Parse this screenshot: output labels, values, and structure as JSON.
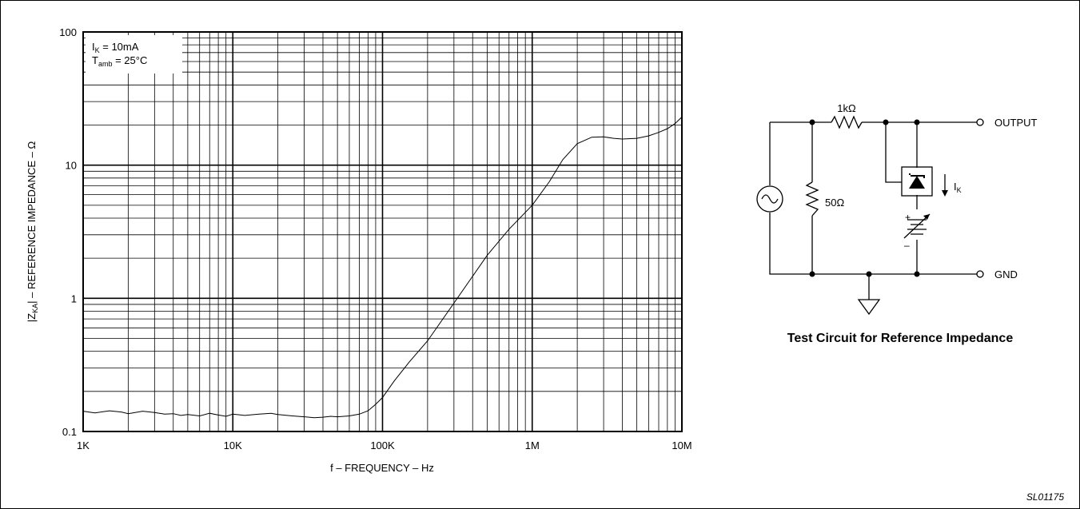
{
  "chart_data": {
    "type": "line",
    "xlabel": "f – FREQUENCY – Hz",
    "ylabel": "|Z",
    "ylabel_sub": "KA",
    "ylabel_rest": "| – REFERENCE IMPEDANCE – Ω",
    "x_scale": "log",
    "y_scale": "log",
    "xlim": [
      1000,
      10000000
    ],
    "ylim": [
      0.1,
      100
    ],
    "x_ticks": [
      {
        "value": 1000,
        "label": "1K"
      },
      {
        "value": 10000,
        "label": "10K"
      },
      {
        "value": 100000,
        "label": "100K"
      },
      {
        "value": 1000000,
        "label": "1M"
      },
      {
        "value": 10000000,
        "label": "10M"
      }
    ],
    "y_ticks": [
      {
        "value": 0.1,
        "label": "0.1"
      },
      {
        "value": 1,
        "label": "1"
      },
      {
        "value": 10,
        "label": "10"
      },
      {
        "value": 100,
        "label": "100"
      }
    ],
    "grid": true,
    "annotation": {
      "line1_main": "I",
      "line1_sub": "K",
      "line1_rest": " = 10mA",
      "line2_main": "T",
      "line2_sub": "amb",
      "line2_rest": " = 25°C"
    },
    "series": [
      {
        "x": [
          1000,
          1200,
          1500,
          1800,
          2000,
          2500,
          3000,
          3500,
          4000,
          4500,
          5000,
          6000,
          7000,
          8000,
          9000,
          10000,
          12000,
          15000,
          18000,
          20000,
          25000,
          30000,
          35000,
          40000,
          45000,
          50000,
          60000,
          70000,
          80000,
          90000,
          100000,
          120000,
          150000,
          200000,
          300000,
          500000,
          700000,
          1000000,
          1300000,
          1600000,
          2000000,
          2500000,
          3000000,
          3500000,
          4000000,
          5000000,
          6000000,
          7000000,
          8000000,
          9000000,
          10000000
        ],
        "y": [
          0.142,
          0.138,
          0.143,
          0.14,
          0.136,
          0.142,
          0.139,
          0.135,
          0.136,
          0.132,
          0.134,
          0.131,
          0.137,
          0.133,
          0.13,
          0.135,
          0.132,
          0.135,
          0.137,
          0.134,
          0.131,
          0.129,
          0.127,
          0.128,
          0.13,
          0.129,
          0.131,
          0.135,
          0.143,
          0.16,
          0.18,
          0.24,
          0.33,
          0.48,
          0.92,
          2.1,
          3.3,
          5.0,
          7.5,
          11,
          14.5,
          16.2,
          16.3,
          15.9,
          15.7,
          15.9,
          16.6,
          17.6,
          18.8,
          20.5,
          23
        ]
      }
    ]
  },
  "circuit": {
    "title": "Test Circuit for Reference Impedance",
    "resistor_top": "1kΩ",
    "resistor_shunt": "50Ω",
    "output_label": "OUTPUT",
    "gnd_label": "GND",
    "current_main": "I",
    "current_sub": "K",
    "battery_plus": "+",
    "battery_minus": "–"
  },
  "footer": {
    "code": "SL01175"
  }
}
